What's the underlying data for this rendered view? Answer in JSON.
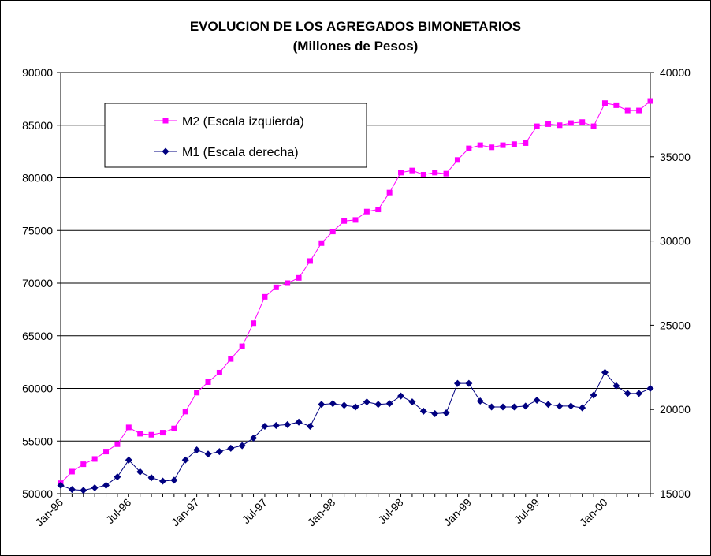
{
  "chart_data": {
    "type": "line",
    "title": "EVOLUCION DE LOS AGREGADOS BIMONETARIOS",
    "subtitle": "(Millones de Pesos)",
    "x_tick_labels": [
      "Jan-96",
      "Jul-96",
      "Jan-97",
      "Jul-97",
      "Jan-98",
      "Jul-98",
      "Jan-99",
      "Jul-99",
      "Jan-00"
    ],
    "x_start": "Jan-96",
    "grid": "horizontal",
    "legend_position": "top-left",
    "y_left": {
      "min": 50000,
      "max": 90000,
      "ticks": [
        "50000",
        "55000",
        "60000",
        "65000",
        "70000",
        "75000",
        "80000",
        "85000",
        "90000"
      ]
    },
    "y_right": {
      "min": 15000,
      "max": 40000,
      "ticks": [
        "15000",
        "20000",
        "25000",
        "30000",
        "35000",
        "40000"
      ]
    },
    "series": [
      {
        "name": "M2 (Escala izquierda)",
        "axis": "left",
        "color": "#ff00ff",
        "marker": "square",
        "values": [
          51000,
          52100,
          52800,
          53300,
          54000,
          54700,
          56300,
          55700,
          55600,
          55800,
          56200,
          57800,
          59600,
          60600,
          61500,
          62800,
          64000,
          66200,
          68700,
          69600,
          70000,
          70500,
          72100,
          73800,
          74900,
          75900,
          76000,
          76800,
          77000,
          78600,
          80500,
          80700,
          80300,
          80500,
          80400,
          81700,
          82800,
          83100,
          82900,
          83100,
          83200,
          83300,
          84900,
          85100,
          85000,
          85200,
          85300,
          84900,
          87100,
          86900,
          86400,
          86400,
          87300
        ]
      },
      {
        "name": "M1 (Escala derecha)",
        "axis": "right",
        "color": "#000080",
        "marker": "diamond",
        "values": [
          15500,
          15250,
          15200,
          15350,
          15500,
          16000,
          17000,
          16300,
          15950,
          15750,
          15800,
          17000,
          17600,
          17350,
          17500,
          17700,
          17850,
          18300,
          19000,
          19050,
          19100,
          19250,
          19000,
          20300,
          20350,
          20250,
          20150,
          20450,
          20300,
          20350,
          20800,
          20450,
          19900,
          19750,
          19800,
          21550,
          21550,
          20500,
          20150,
          20150,
          20150,
          20200,
          20550,
          20300,
          20200,
          20200,
          20100,
          20850,
          22200,
          21400,
          20950,
          20950,
          21250
        ]
      }
    ]
  }
}
